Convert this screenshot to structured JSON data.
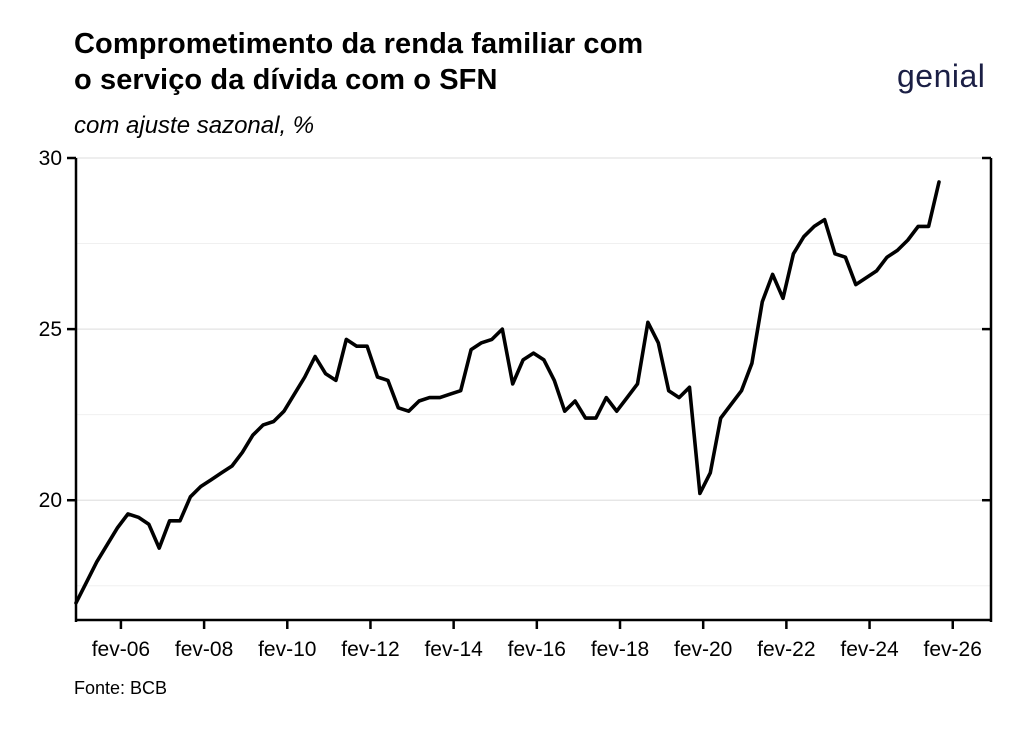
{
  "header": {
    "title_line1": "Comprometimento da renda familiar com",
    "title_line2": "o serviço da dívida com o SFN",
    "subtitle": "com ajuste sazonal, %",
    "logo": "genial"
  },
  "footer": {
    "source": "Fonte: BCB"
  },
  "chart_data": {
    "type": "line",
    "title": "Comprometimento da renda familiar com o serviço da dívida com o SFN",
    "subtitle": "com ajuste sazonal, %",
    "xlabel": "",
    "ylabel": "",
    "ylim": [
      16.5,
      30
    ],
    "yticks": [
      20,
      25,
      30
    ],
    "xlim": [
      2005.0,
      2027.0
    ],
    "xtick_labels": [
      "fev-06",
      "fev-08",
      "fev-10",
      "fev-12",
      "fev-14",
      "fev-16",
      "fev-18",
      "fev-20",
      "fev-22",
      "fev-24",
      "fev-26"
    ],
    "xticks": [
      2006.08,
      2008.08,
      2010.08,
      2012.08,
      2014.08,
      2016.08,
      2018.08,
      2020.08,
      2022.08,
      2024.08,
      2026.08
    ],
    "grid": "horizontal",
    "line_color": "#000000",
    "series": [
      {
        "x": [
          2005.0,
          2005.25,
          2005.5,
          2005.75,
          2006.0,
          2006.25,
          2006.5,
          2006.75,
          2007.0,
          2007.25,
          2007.5,
          2007.75,
          2008.0,
          2008.25,
          2008.5,
          2008.75,
          2009.0,
          2009.25,
          2009.5,
          2009.75,
          2010.0,
          2010.25,
          2010.5,
          2010.75,
          2011.0,
          2011.25,
          2011.5,
          2011.75,
          2012.0,
          2012.25,
          2012.5,
          2012.75,
          2013.0,
          2013.25,
          2013.5,
          2013.75,
          2014.0,
          2014.25,
          2014.5,
          2014.75,
          2015.0,
          2015.25,
          2015.5,
          2015.75,
          2016.0,
          2016.25,
          2016.5,
          2016.75,
          2017.0,
          2017.25,
          2017.5,
          2017.75,
          2018.0,
          2018.25,
          2018.5,
          2018.75,
          2019.0,
          2019.25,
          2019.5,
          2019.75,
          2020.0,
          2020.25,
          2020.5,
          2020.75,
          2021.0,
          2021.25,
          2021.5,
          2021.75,
          2022.0,
          2022.25,
          2022.5,
          2022.75,
          2023.0,
          2023.25,
          2023.5,
          2023.75,
          2024.0,
          2024.25,
          2024.5,
          2024.75,
          2025.0,
          2025.25,
          2025.5,
          2025.75
        ],
        "values": [
          17.0,
          17.6,
          18.2,
          18.7,
          19.2,
          19.6,
          19.5,
          19.3,
          18.6,
          19.4,
          19.4,
          20.1,
          20.4,
          20.6,
          20.8,
          21.0,
          21.4,
          21.9,
          22.2,
          22.3,
          22.6,
          23.1,
          23.6,
          24.2,
          23.7,
          23.5,
          24.7,
          24.5,
          24.5,
          23.6,
          23.5,
          22.7,
          22.6,
          22.9,
          23.0,
          23.0,
          23.1,
          23.2,
          24.4,
          24.6,
          24.7,
          25.0,
          23.4,
          24.1,
          24.3,
          24.1,
          23.5,
          22.6,
          22.9,
          22.4,
          22.4,
          23.0,
          22.6,
          23.0,
          23.4,
          25.2,
          24.6,
          23.2,
          23.0,
          23.3,
          20.2,
          20.8,
          22.4,
          22.8,
          23.2,
          24.0,
          25.8,
          26.6,
          25.9,
          27.2,
          27.7,
          28.0,
          28.2,
          27.2,
          27.1,
          26.3,
          26.5,
          26.7,
          27.1,
          27.3,
          27.6,
          28.0,
          28.0,
          29.3
        ]
      }
    ]
  }
}
